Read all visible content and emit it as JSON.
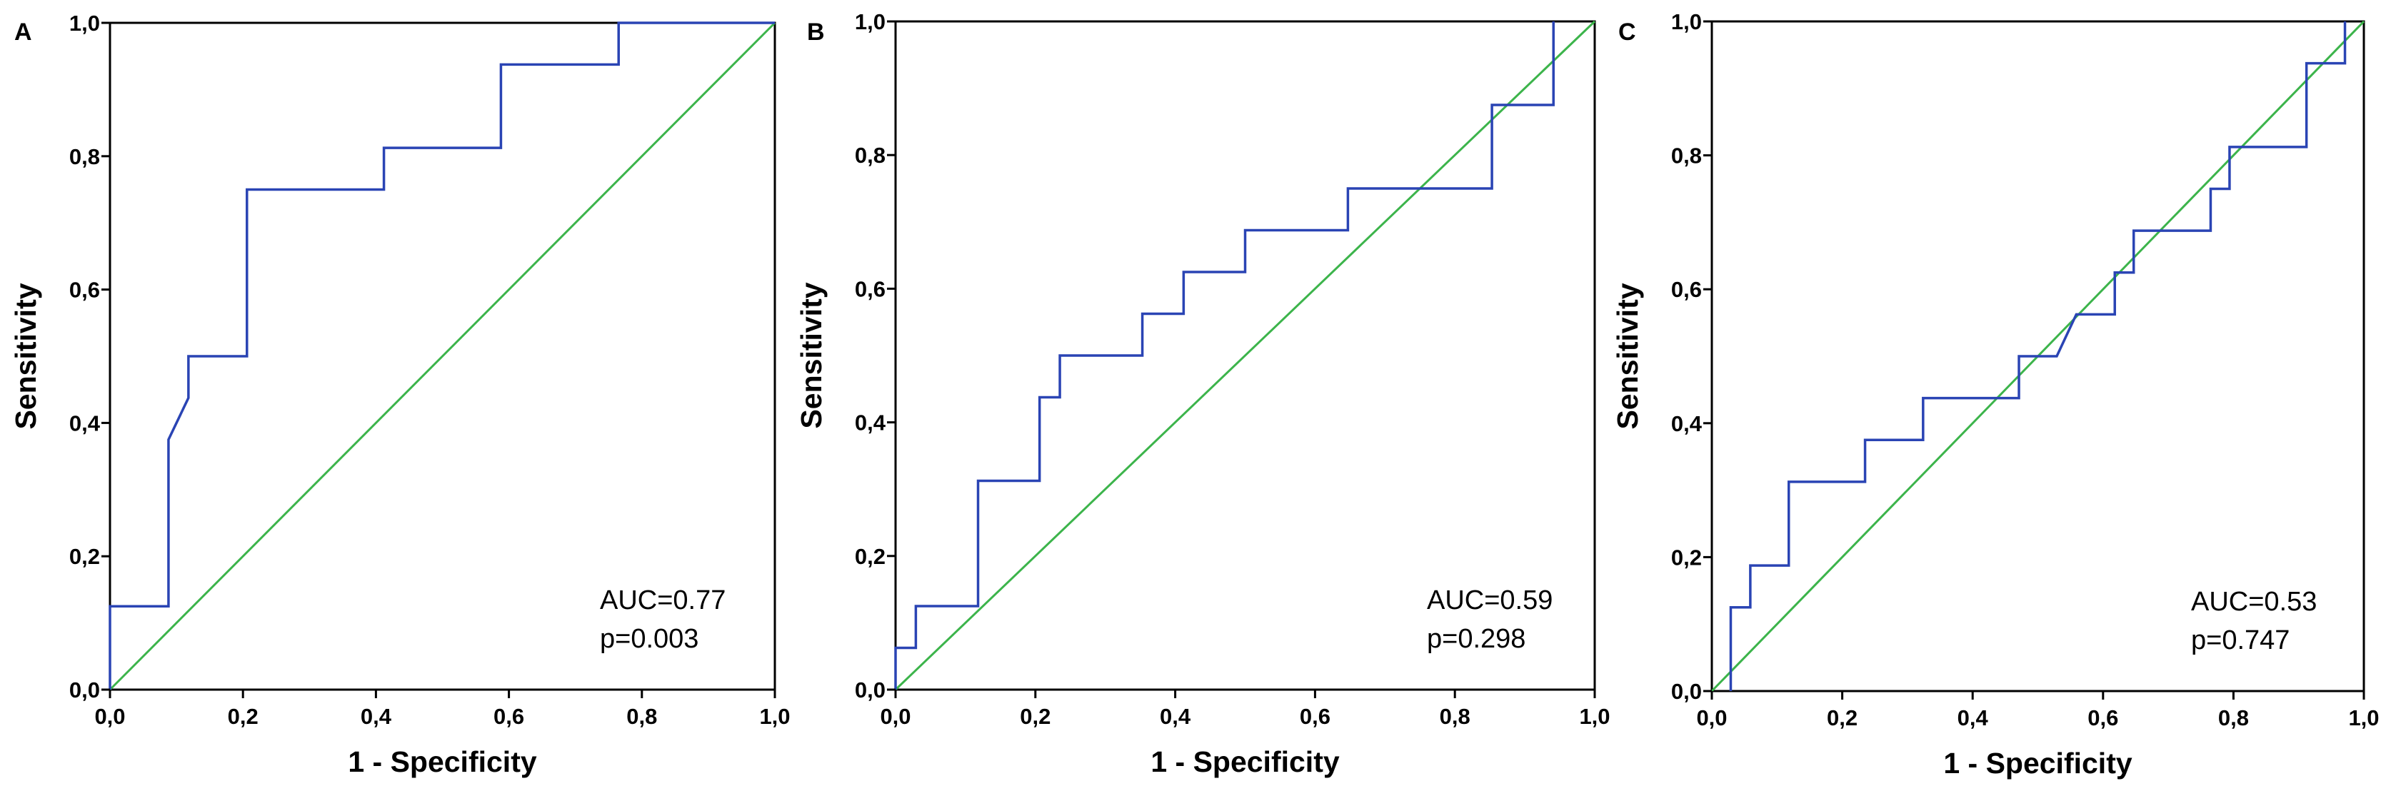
{
  "colors": {
    "roc": "#2a44b4",
    "reference": "#3cb44b",
    "axes": "#000000"
  },
  "chart_data": [
    {
      "type": "line",
      "panel_label": "A",
      "xlabel": "1 - Specificity",
      "ylabel": "Sensitivity",
      "xlim": [
        0,
        1
      ],
      "ylim": [
        0,
        1
      ],
      "x_ticks": [
        "0,0",
        "0,2",
        "0,4",
        "0,6",
        "0,8",
        "1,0"
      ],
      "y_ticks": [
        "0,0",
        "0,2",
        "0,4",
        "0,6",
        "0,8",
        "1,0"
      ],
      "grid": false,
      "annotations": [
        "AUC=0.77",
        "p=0.003"
      ],
      "series": [
        {
          "name": "ROC",
          "x": [
            0,
            0,
            0.088,
            0.088,
            0.118,
            0.118,
            0.206,
            0.206,
            0.412,
            0.412,
            0.588,
            0.588,
            0.765,
            0.765,
            1
          ],
          "y": [
            0,
            0.125,
            0.125,
            0.375,
            0.4375,
            0.5,
            0.5,
            0.75,
            0.75,
            0.8125,
            0.8125,
            0.9375,
            0.9375,
            1,
            1
          ]
        },
        {
          "name": "Reference",
          "x": [
            0,
            1
          ],
          "y": [
            0,
            1
          ]
        }
      ]
    },
    {
      "type": "line",
      "panel_label": "B",
      "xlabel": "1 - Specificity",
      "ylabel": "Sensitivity",
      "xlim": [
        0,
        1
      ],
      "ylim": [
        0,
        1
      ],
      "x_ticks": [
        "0,0",
        "0,2",
        "0,4",
        "0,6",
        "0,8",
        "1,0"
      ],
      "y_ticks": [
        "0,0",
        "0,2",
        "0,4",
        "0,6",
        "0,8",
        "1,0"
      ],
      "grid": false,
      "annotations": [
        "AUC=0.59",
        "p=0.298"
      ],
      "series": [
        {
          "name": "ROC",
          "x": [
            0,
            0,
            0.029,
            0.029,
            0.118,
            0.118,
            0.206,
            0.206,
            0.235,
            0.235,
            0.353,
            0.353,
            0.412,
            0.412,
            0.5,
            0.5,
            0.647,
            0.647,
            0.853,
            0.853,
            0.941,
            0.941
          ],
          "y": [
            0,
            0.0625,
            0.0625,
            0.125,
            0.125,
            0.3125,
            0.3125,
            0.4375,
            0.4375,
            0.5,
            0.5,
            0.5625,
            0.5625,
            0.625,
            0.625,
            0.6875,
            0.6875,
            0.75,
            0.75,
            0.875,
            0.875,
            1
          ]
        },
        {
          "name": "Reference",
          "x": [
            0,
            1
          ],
          "y": [
            0,
            1
          ]
        }
      ]
    },
    {
      "type": "line",
      "panel_label": "C",
      "xlabel": "1 - Specificity",
      "ylabel": "Sensitivity",
      "xlim": [
        0,
        1
      ],
      "ylim": [
        0,
        1
      ],
      "x_ticks": [
        "0,0",
        "0,2",
        "0,4",
        "0,6",
        "0,8",
        "1,0"
      ],
      "y_ticks": [
        "0,0",
        "0,2",
        "0,4",
        "0,6",
        "0,8",
        "1,0"
      ],
      "grid": false,
      "annotations": [
        "AUC=0.53",
        "p=0.747"
      ],
      "series": [
        {
          "name": "ROC",
          "x": [
            0.029,
            0.029,
            0.059,
            0.059,
            0.118,
            0.118,
            0.235,
            0.235,
            0.324,
            0.324,
            0.471,
            0.471,
            0.529,
            0.559,
            0.618,
            0.618,
            0.647,
            0.647,
            0.765,
            0.765,
            0.794,
            0.794,
            0.912,
            0.912,
            0.971,
            0.971
          ],
          "y": [
            0,
            0.125,
            0.125,
            0.1875,
            0.1875,
            0.3125,
            0.3125,
            0.375,
            0.375,
            0.4375,
            0.4375,
            0.5,
            0.5,
            0.5625,
            0.5625,
            0.625,
            0.625,
            0.6875,
            0.6875,
            0.75,
            0.75,
            0.8125,
            0.8125,
            0.9375,
            0.9375,
            1
          ]
        },
        {
          "name": "Reference",
          "x": [
            0,
            1
          ],
          "y": [
            0,
            1
          ]
        }
      ]
    }
  ]
}
